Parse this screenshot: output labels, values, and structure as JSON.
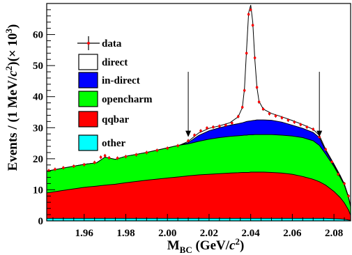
{
  "chart_data": {
    "type": "area",
    "title": "",
    "xlabel": {
      "main": "M",
      "sub": "BC",
      "rest": " (GeV/",
      "italic": "c",
      "sup": "2",
      "close": ")"
    },
    "ylabel": {
      "pre": "Events / (1 MeV/",
      "italic": "c",
      "sup": "2",
      "mid": ")(× 10",
      "sup2": "3",
      "close": ")"
    },
    "xlim": [
      1.942,
      2.088
    ],
    "ylim": [
      0,
      70
    ],
    "x_ticks": [
      1.96,
      1.98,
      2.0,
      2.02,
      2.04,
      2.06,
      2.08
    ],
    "x_tick_labels": [
      "1.96",
      "1.98",
      "2.00",
      "2.02",
      "2.04",
      "2.06",
      "2.08"
    ],
    "y_ticks": [
      0,
      10,
      20,
      30,
      40,
      50,
      60
    ],
    "y_tick_labels": [
      "0",
      "10",
      "20",
      "30",
      "40",
      "50",
      "60"
    ],
    "legend_position": "top-left",
    "legend": [
      {
        "key": "data",
        "label": "data",
        "style": "marker"
      },
      {
        "key": "direct",
        "label": "direct",
        "style": "box",
        "color": "#ffffff"
      },
      {
        "key": "indirect",
        "label": "in-direct",
        "style": "box",
        "color": "#0000ff"
      },
      {
        "key": "opencharm",
        "label": "opencharm",
        "style": "box",
        "color": "#00ff00"
      },
      {
        "key": "qqbar",
        "label": "qqbar",
        "style": "box",
        "color": "#ff0000"
      },
      {
        "key": "other",
        "label": "other",
        "style": "box",
        "color": "#00ffff"
      }
    ],
    "arrows": [
      {
        "x": 2.01,
        "y_top": 48,
        "y_tip": 27
      },
      {
        "x": 2.073,
        "y_top": 48,
        "y_tip": 27
      }
    ],
    "x": [
      1.942,
      1.95,
      1.96,
      1.966,
      1.97,
      1.975,
      1.98,
      1.99,
      2.0,
      2.006,
      2.01,
      2.015,
      2.02,
      2.025,
      2.03,
      2.034,
      2.036,
      2.037,
      2.038,
      2.039,
      2.04,
      2.041,
      2.042,
      2.043,
      2.044,
      2.046,
      2.05,
      2.055,
      2.06,
      2.065,
      2.07,
      2.073,
      2.076,
      2.08,
      2.083,
      2.085,
      2.087,
      2.088
    ],
    "series": [
      {
        "name": "other",
        "color": "#00ffff",
        "values": [
          0.8,
          0.8,
          0.8,
          0.8,
          0.8,
          0.8,
          0.8,
          0.8,
          0.8,
          0.8,
          0.8,
          0.8,
          0.8,
          0.8,
          0.8,
          0.8,
          0.8,
          0.8,
          0.8,
          0.8,
          0.8,
          0.8,
          0.8,
          0.8,
          0.8,
          0.8,
          0.8,
          0.8,
          0.8,
          0.8,
          0.8,
          0.8,
          0.8,
          0.7,
          0.6,
          0.5,
          0.3,
          0.2
        ]
      },
      {
        "name": "qqbar",
        "color": "#ff0000",
        "values": [
          9.0,
          9.8,
          10.8,
          11.2,
          11.5,
          11.8,
          12.3,
          13.1,
          13.8,
          14.2,
          14.5,
          14.8,
          15.0,
          15.2,
          15.4,
          15.5,
          15.6,
          15.6,
          15.6,
          15.6,
          15.7,
          15.7,
          15.7,
          15.7,
          15.7,
          15.7,
          15.6,
          15.4,
          15.0,
          14.3,
          13.4,
          12.6,
          11.5,
          9.5,
          7.5,
          5.8,
          3.5,
          1.8
        ]
      },
      {
        "name": "opencharm",
        "color": "#00ff00",
        "values": [
          16.0,
          17.0,
          18.2,
          18.7,
          20.5,
          19.8,
          20.8,
          22.0,
          23.5,
          24.4,
          24.8,
          25.6,
          26.3,
          26.8,
          27.2,
          27.4,
          27.5,
          27.6,
          27.6,
          27.7,
          27.7,
          27.7,
          27.8,
          27.8,
          27.8,
          27.8,
          27.8,
          27.6,
          27.3,
          26.8,
          25.8,
          24.3,
          21.5,
          17.5,
          14.0,
          11.5,
          7.5,
          4.5
        ]
      },
      {
        "name": "in-direct",
        "color": "#0000ff",
        "values": [
          16.0,
          17.0,
          18.2,
          18.7,
          20.5,
          19.8,
          20.8,
          22.0,
          23.5,
          24.4,
          25.2,
          27.5,
          29.0,
          30.0,
          30.8,
          31.3,
          31.6,
          31.8,
          32.0,
          32.1,
          32.2,
          32.3,
          32.4,
          32.5,
          32.5,
          32.5,
          32.4,
          31.8,
          30.8,
          29.8,
          28.5,
          26.8,
          22.5,
          18.0,
          14.3,
          11.7,
          7.6,
          4.6
        ]
      },
      {
        "name": "direct",
        "color": "#ffffff",
        "values": [
          16.0,
          17.0,
          18.2,
          18.7,
          20.5,
          19.8,
          20.8,
          22.0,
          23.5,
          24.4,
          25.6,
          28.3,
          29.8,
          30.6,
          31.6,
          33.5,
          36.5,
          42.5,
          55.0,
          67.0,
          69.5,
          64.0,
          52.0,
          43.0,
          38.5,
          36.0,
          34.6,
          33.5,
          32.3,
          31.0,
          29.5,
          27.5,
          23.0,
          18.3,
          14.6,
          11.9,
          7.8,
          4.7
        ]
      }
    ],
    "data_points": {
      "x": [
        1.943,
        1.946,
        1.95,
        1.955,
        1.96,
        1.965,
        1.968,
        1.97,
        1.972,
        1.976,
        1.98,
        1.985,
        1.99,
        1.995,
        2.0,
        2.005,
        2.01,
        2.013,
        2.016,
        2.019,
        2.022,
        2.025,
        2.028,
        2.031,
        2.034,
        2.036,
        2.037,
        2.038,
        2.039,
        2.04,
        2.041,
        2.042,
        2.043,
        2.044,
        2.046,
        2.049,
        2.052,
        2.055,
        2.058,
        2.061,
        2.064,
        2.067,
        2.07,
        2.073,
        2.076,
        2.079,
        2.082,
        2.085,
        2.087
      ],
      "y": [
        16.2,
        16.6,
        17.1,
        17.6,
        18.1,
        18.8,
        20.5,
        21.0,
        20.3,
        20.2,
        20.7,
        21.3,
        22.0,
        22.7,
        23.4,
        24.2,
        25.8,
        27.6,
        29.0,
        29.9,
        30.2,
        30.5,
        30.8,
        31.5,
        33.6,
        36.6,
        42.0,
        54.0,
        66.5,
        68.0,
        63.0,
        52.5,
        43.0,
        38.3,
        36.0,
        34.5,
        33.8,
        33.2,
        32.4,
        31.8,
        31.0,
        30.2,
        29.5,
        27.0,
        23.0,
        19.0,
        15.0,
        12.0,
        8.0
      ],
      "color": "#ff0000"
    }
  }
}
